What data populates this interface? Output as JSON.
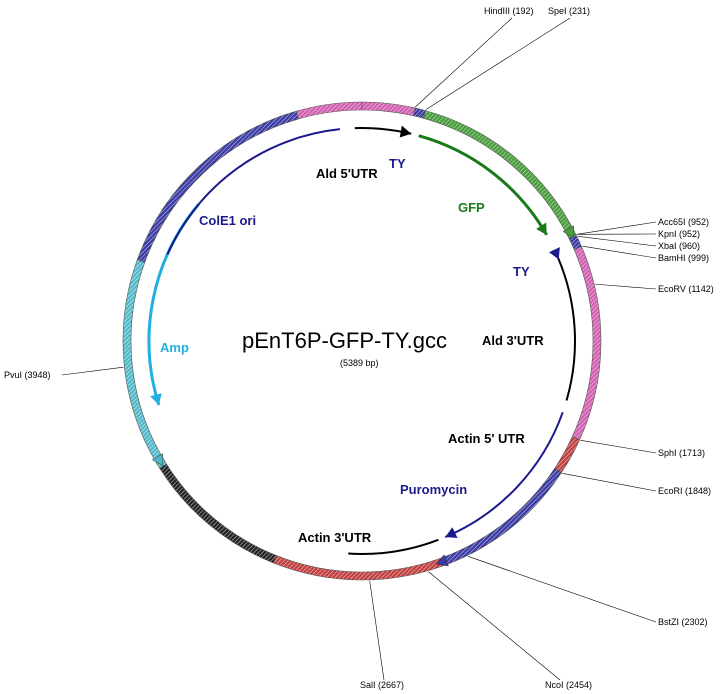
{
  "plasmid": {
    "name": "pEnT6P-GFP-TY.gcc",
    "size_text": "(5389 bp)",
    "length": 5389
  },
  "colors": {
    "pink": "#d060b0",
    "green": "#4a9d3e",
    "green_arrow": "#1a7a1a",
    "navy": "#1a1a8c",
    "blue": "#3a3aa0",
    "cyan": "#20b0e0",
    "cyan_band": "#50b8c8",
    "red": "#c04040",
    "black": "#000000"
  },
  "features": [
    {
      "label": "Ald 5'UTR",
      "color": "#000000"
    },
    {
      "label": "TY",
      "color": "#1a1a8c"
    },
    {
      "label": "GFP",
      "color": "#1a7a1a"
    },
    {
      "label": "TY",
      "color": "#1a1a8c"
    },
    {
      "label": "Ald 3'UTR",
      "color": "#000000"
    },
    {
      "label": "Actin 5' UTR",
      "color": "#000000"
    },
    {
      "label": "Puromycin",
      "color": "#1a1a8c"
    },
    {
      "label": "Actin 3'UTR",
      "color": "#000000"
    },
    {
      "label": "Amp",
      "color": "#20b0e0"
    },
    {
      "label": "ColE1 ori",
      "color": "#1a1a8c"
    }
  ],
  "sites": [
    {
      "name": "HindIII",
      "position": 192,
      "label": "HindIII (192)"
    },
    {
      "name": "SpeI",
      "position": 231,
      "label": "SpeI (231)"
    },
    {
      "name": "Acc65I",
      "position": 952,
      "label": "Acc65I (952)"
    },
    {
      "name": "KpnI",
      "position": 952,
      "label": "KpnI (952)"
    },
    {
      "name": "XbaI",
      "position": 960,
      "label": "XbaI (960)"
    },
    {
      "name": "BamHI",
      "position": 999,
      "label": "BamHI (999)"
    },
    {
      "name": "EcoRV",
      "position": 1142,
      "label": "EcoRV (1142)"
    },
    {
      "name": "SphI",
      "position": 1713,
      "label": "SphI (1713)"
    },
    {
      "name": "EcoRI",
      "position": 1848,
      "label": "EcoRI (1848)"
    },
    {
      "name": "BstZI",
      "position": 2302,
      "label": "BstZI (2302)"
    },
    {
      "name": "NcoI",
      "position": 2454,
      "label": "NcoI (2454)"
    },
    {
      "name": "SalI",
      "position": 2667,
      "label": "SalI (2667)"
    },
    {
      "name": "PvuI",
      "position": 3948,
      "label": "PvuI (3948)"
    }
  ]
}
